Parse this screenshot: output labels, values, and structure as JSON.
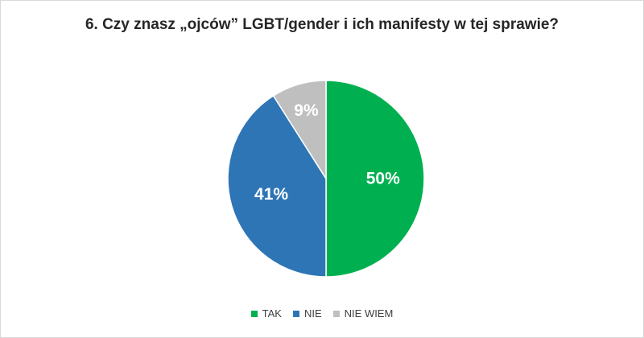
{
  "chart_data": {
    "type": "pie",
    "title": "6. Czy znasz „ojców” LGBT/gender i ich manifesty w tej sprawie?",
    "categories": [
      "TAK",
      "NIE",
      "NIE WIEM"
    ],
    "values": [
      50,
      41,
      9
    ],
    "labels": [
      "50%",
      "41%",
      "9%"
    ],
    "colors": [
      "#00b050",
      "#2e75b6",
      "#bfbfbf"
    ],
    "legend_position": "bottom"
  }
}
